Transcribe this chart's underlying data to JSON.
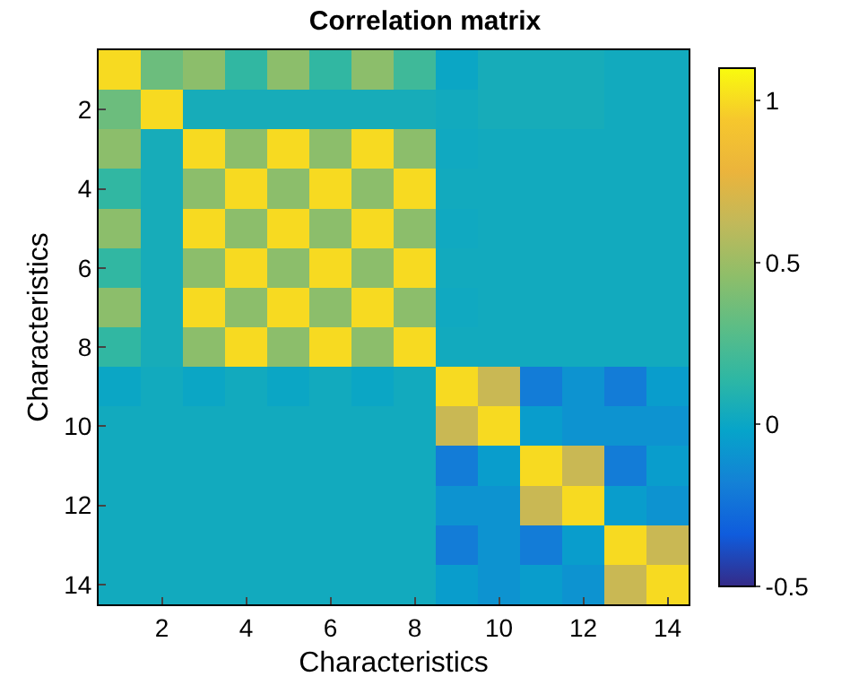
{
  "chart_data": {
    "type": "heatmap",
    "title": "Correlation matrix",
    "xlabel": "Characteristics",
    "ylabel": "Characteristics",
    "categories": [
      null,
      "2",
      null,
      "4",
      null,
      "6",
      null,
      "8",
      null,
      "10",
      null,
      "12",
      null,
      "14"
    ],
    "y_categories": [
      null,
      "2",
      null,
      "4",
      null,
      "6",
      null,
      "8",
      null,
      "10",
      null,
      "12",
      null,
      "14"
    ],
    "cells": [
      [
        1,
        0.35,
        0.45,
        0.15,
        0.45,
        0.15,
        0.45,
        0.2,
        0,
        0.05,
        0.05,
        0.05,
        0.03,
        0.03
      ],
      [
        0.35,
        1,
        0.05,
        0.05,
        0.05,
        0.05,
        0.05,
        0.05,
        0.03,
        0.05,
        0.05,
        0.05,
        0.03,
        0.03
      ],
      [
        0.45,
        0.05,
        1,
        0.45,
        1,
        0.45,
        1,
        0.45,
        0.02,
        0.03,
        0.03,
        0.03,
        0.03,
        0.03
      ],
      [
        0.15,
        0.05,
        0.45,
        1,
        0.45,
        1,
        0.45,
        1,
        0.03,
        0.03,
        0.03,
        0.03,
        0.03,
        0.03
      ],
      [
        0.45,
        0.05,
        1,
        0.45,
        1,
        0.45,
        1,
        0.45,
        0.02,
        0.03,
        0.03,
        0.03,
        0.03,
        0.03
      ],
      [
        0.15,
        0.05,
        0.45,
        1,
        0.45,
        1,
        0.45,
        1,
        0.03,
        0.03,
        0.03,
        0.03,
        0.03,
        0.03
      ],
      [
        0.45,
        0.05,
        1,
        0.45,
        1,
        0.45,
        1,
        0.45,
        0.02,
        0.03,
        0.03,
        0.03,
        0.03,
        0.03
      ],
      [
        0.15,
        0.05,
        0.45,
        1,
        0.45,
        1,
        0.45,
        1,
        0.03,
        0.03,
        0.03,
        0.03,
        0.03,
        0.03
      ],
      [
        0,
        0.03,
        0,
        0.03,
        0,
        0.03,
        0,
        0.03,
        1,
        0.65,
        -0.2,
        -0.1,
        -0.2,
        -0.05
      ],
      [
        0.03,
        0.03,
        0.03,
        0.03,
        0.03,
        0.03,
        0.03,
        0.03,
        0.65,
        1,
        -0.05,
        -0.1,
        -0.1,
        -0.1
      ],
      [
        0.03,
        0.03,
        0.03,
        0.03,
        0.03,
        0.03,
        0.03,
        0.03,
        -0.2,
        -0.05,
        1,
        0.65,
        -0.2,
        -0.05
      ],
      [
        0.03,
        0.03,
        0.03,
        0.03,
        0.03,
        0.03,
        0.03,
        0.03,
        -0.1,
        -0.1,
        0.65,
        1,
        -0.05,
        -0.1
      ],
      [
        0.03,
        0.03,
        0.03,
        0.03,
        0.03,
        0.03,
        0.03,
        0.03,
        -0.2,
        -0.1,
        -0.2,
        -0.05,
        1,
        0.65
      ],
      [
        0.03,
        0.03,
        0.03,
        0.03,
        0.03,
        0.03,
        0.03,
        0.03,
        -0.05,
        -0.1,
        -0.05,
        -0.1,
        0.65,
        1
      ]
    ],
    "clim": [
      -0.5,
      1.1
    ],
    "cticks": [
      -0.5,
      0,
      0.5,
      1
    ]
  }
}
